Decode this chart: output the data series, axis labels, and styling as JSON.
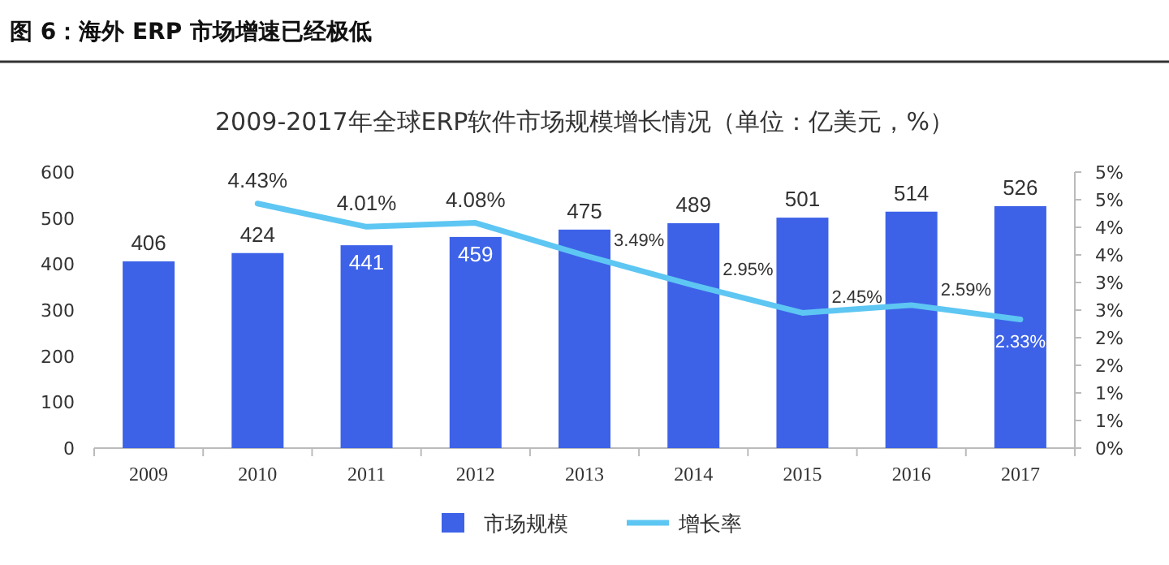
{
  "chart_data": {
    "type": "bar",
    "title": "图 6：海外 ERP 市场增速已经极低",
    "subtitle": "2009-2017年全球ERP软件市场规模增长情况（单位：亿美元，%）",
    "categories": [
      "2009",
      "2010",
      "2011",
      "2012",
      "2013",
      "2014",
      "2015",
      "2016",
      "2017"
    ],
    "series": [
      {
        "name": "市场规模",
        "color": "#3d62e8",
        "values": [
          406,
          424,
          441,
          459,
          475,
          489,
          501,
          514,
          526
        ],
        "value_labels": [
          "406",
          "424",
          "441",
          "459",
          "475",
          "489",
          "501",
          "514",
          "526"
        ]
      },
      {
        "name": "增长率",
        "type": "line",
        "axis": "y2",
        "color": "#5ec6f2",
        "values": [
          null,
          4.43,
          4.01,
          4.08,
          3.49,
          2.95,
          2.45,
          2.59,
          2.33
        ],
        "value_labels": [
          null,
          "4.43%",
          "4.01%",
          "4.08%",
          "3.49%",
          "2.95%",
          "2.45%",
          "2.59%",
          "2.33%"
        ]
      }
    ],
    "ylim": [
      0,
      600
    ],
    "yticks": [
      0,
      100,
      200,
      300,
      400,
      500,
      600
    ],
    "y2lim": [
      0,
      5
    ],
    "y2ticks": [
      {
        "value": 0,
        "label": "0%"
      },
      {
        "value": 0.5,
        "label": "1%"
      },
      {
        "value": 1,
        "label": "1%"
      },
      {
        "value": 1.5,
        "label": "2%"
      },
      {
        "value": 2,
        "label": "2%"
      },
      {
        "value": 2.5,
        "label": "3%"
      },
      {
        "value": 3,
        "label": "3%"
      },
      {
        "value": 3.5,
        "label": "4%"
      },
      {
        "value": 4,
        "label": "4%"
      },
      {
        "value": 4.5,
        "label": "5%"
      },
      {
        "value": 5,
        "label": "5%"
      }
    ],
    "legend": "bottom",
    "grid": false,
    "marker": "none",
    "line_style": "solid"
  }
}
